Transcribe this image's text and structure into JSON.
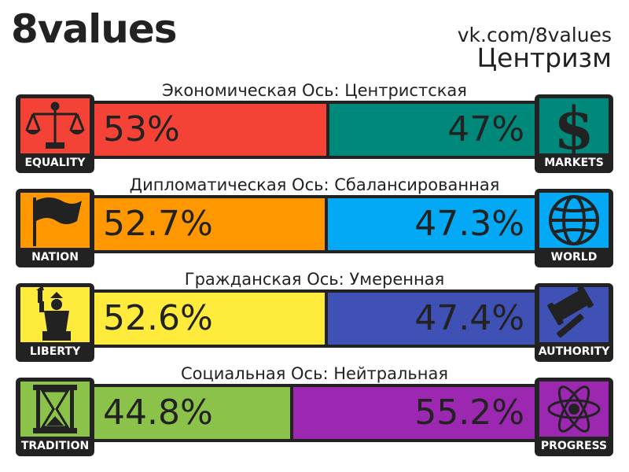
{
  "brand": "8values",
  "site": "vk.com/8values",
  "ideology": "Центризм",
  "chart_data": {
    "type": "bar",
    "orientation": "horizontal",
    "stacked": true,
    "axes": [
      {
        "title": "Экономическая Ось: Центристская",
        "left": {
          "label": "EQUALITY",
          "value": 53,
          "display": "53%",
          "color": "#f44336",
          "icon": "scales-icon",
          "icon_bg": "#f44336"
        },
        "right": {
          "label": "MARKETS",
          "value": 47,
          "display": "47%",
          "color": "#00897b",
          "icon": "dollar-icon",
          "icon_bg": "#00897b"
        }
      },
      {
        "title": "Дипломатическая Ось: Сбалансированная",
        "left": {
          "label": "NATION",
          "value": 52.7,
          "display": "52.7%",
          "color": "#ff9800",
          "icon": "flag-icon",
          "icon_bg": "#ff9800"
        },
        "right": {
          "label": "WORLD",
          "value": 47.3,
          "display": "47.3%",
          "color": "#03a9f4",
          "icon": "globe-icon",
          "icon_bg": "#03a9f4"
        }
      },
      {
        "title": "Гражданская Ось: Умеренная",
        "left": {
          "label": "LIBERTY",
          "value": 52.6,
          "display": "52.6%",
          "color": "#ffeb3b",
          "icon": "statue-of-liberty-icon",
          "icon_bg": "#ffeb3b"
        },
        "right": {
          "label": "AUTHORITY",
          "value": 47.4,
          "display": "47.4%",
          "color": "#3f51b5",
          "icon": "gavel-icon",
          "icon_bg": "#3f51b5"
        }
      },
      {
        "title": "Социальная Ось: Нейтральная",
        "left": {
          "label": "TRADITION",
          "value": 44.8,
          "display": "44.8%",
          "color": "#8bc34a",
          "icon": "hourglass-icon",
          "icon_bg": "#8bc34a"
        },
        "right": {
          "label": "PROGRESS",
          "value": 55.2,
          "display": "55.2%",
          "color": "#9c27b0",
          "icon": "atom-icon",
          "icon_bg": "#9c27b0"
        }
      }
    ]
  }
}
